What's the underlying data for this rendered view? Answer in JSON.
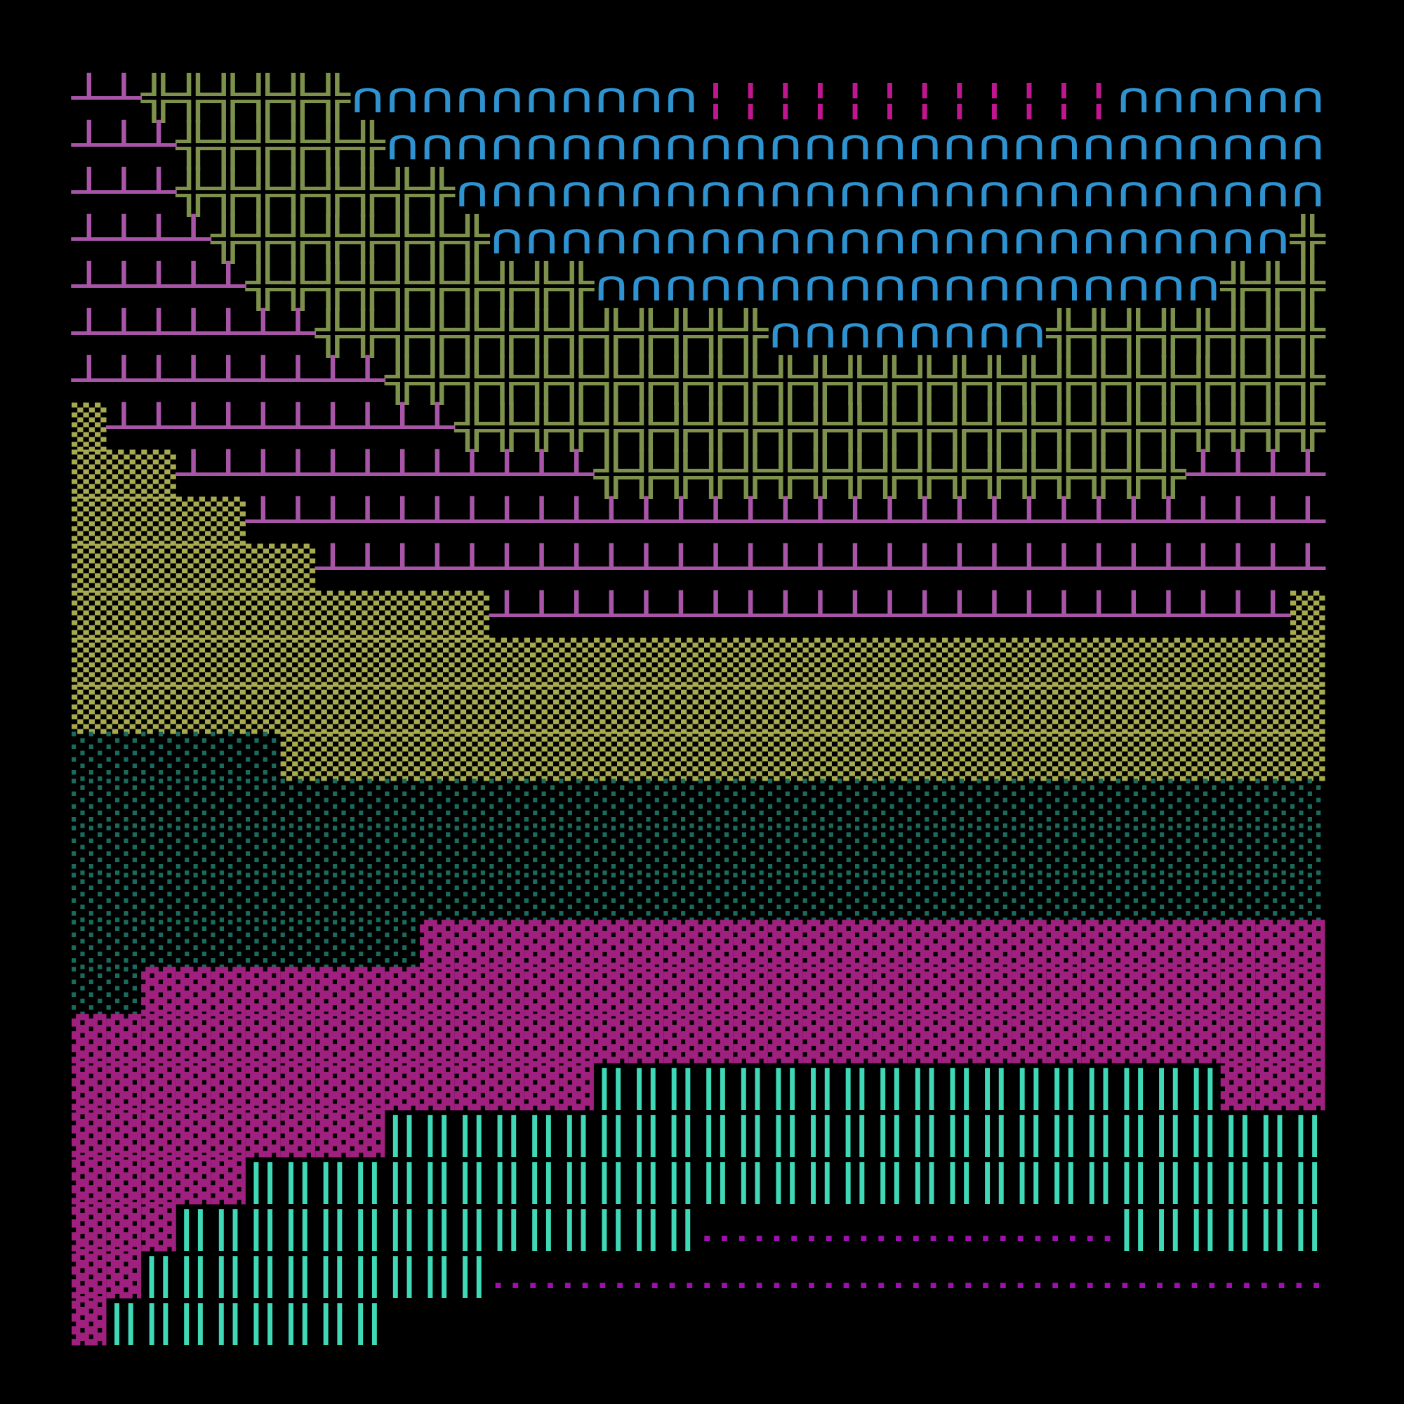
{
  "rows": [
    [
      {
        "text": "┴┴",
        "color": "#a855a8"
      },
      {
        "text": "╬╬╬╬╬╬",
        "color": "#7d914c"
      },
      {
        "text": "∩∩∩∩∩∩∩∩∩∩",
        "color": "#2e93d0"
      },
      {
        "text": "¦¦¦¦¦¦¦¦¦¦¦¦",
        "color": "#c0168f"
      },
      {
        "text": "∩∩∩∩∩∩",
        "color": "#2e93d0"
      }
    ],
    [
      {
        "text": "┴┴┴",
        "color": "#a855a8"
      },
      {
        "text": "╬╬╬╬╬╬",
        "color": "#7d914c"
      },
      {
        "text": "∩∩∩∩∩∩∩∩∩∩∩∩∩∩∩∩∩∩∩∩∩∩∩∩∩∩∩",
        "color": "#2e93d0"
      }
    ],
    [
      {
        "text": "┴┴┴",
        "color": "#a855a8"
      },
      {
        "text": "╬╬╬╬╬╬╬╬",
        "color": "#7d914c"
      },
      {
        "text": "∩∩∩∩∩∩∩∩∩∩∩∩∩∩∩∩∩∩∩∩∩∩∩∩∩",
        "color": "#2e93d0"
      }
    ],
    [
      {
        "text": "┴┴┴┴",
        "color": "#a855a8"
      },
      {
        "text": "╬╬╬╬╬╬╬╬",
        "color": "#7d914c"
      },
      {
        "text": "∩∩∩∩∩∩∩∩∩∩∩∩∩∩∩∩∩∩∩∩∩∩∩",
        "color": "#2e93d0"
      },
      {
        "text": "╬",
        "color": "#7d914c"
      }
    ],
    [
      {
        "text": "┴┴┴┴┴",
        "color": "#a855a8"
      },
      {
        "text": "╬╬╬╬╬╬╬╬╬╬",
        "color": "#7d914c"
      },
      {
        "text": "∩∩∩∩∩∩∩∩∩∩∩∩∩∩∩∩∩∩",
        "color": "#2e93d0"
      },
      {
        "text": "╬╬╬",
        "color": "#7d914c"
      }
    ],
    [
      {
        "text": "┴┴┴┴┴┴┴",
        "color": "#a855a8"
      },
      {
        "text": "╬╬╬╬╬╬╬╬╬╬╬╬╬",
        "color": "#7d914c"
      },
      {
        "text": "∩∩∩∩∩∩∩∩",
        "color": "#2e93d0"
      },
      {
        "text": "╬╬╬╬╬╬╬╬",
        "color": "#7d914c"
      }
    ],
    [
      {
        "text": "┴┴┴┴┴┴┴┴┴",
        "color": "#a855a8"
      },
      {
        "text": "╬╬╬╬╬╬╬╬╬╬╬╬╬╬╬╬╬╬╬╬╬╬╬╬╬╬╬",
        "color": "#7d914c"
      }
    ],
    [
      {
        "text": "▒",
        "color": "#a8aa50"
      },
      {
        "text": "┴┴┴┴┴┴┴┴┴┴",
        "color": "#a855a8"
      },
      {
        "text": "╬╬╬╬╬╬╬╬╬╬╬╬╬╬╬╬╬╬╬╬╬╬╬╬╬",
        "color": "#7d914c"
      }
    ],
    [
      {
        "text": "▒▒▒",
        "color": "#a8aa50"
      },
      {
        "text": "┴┴┴┴┴┴┴┴┴┴┴┴",
        "color": "#a855a8"
      },
      {
        "text": "╬╬╬╬╬╬╬╬╬╬╬╬╬╬╬╬╬",
        "color": "#7d914c"
      },
      {
        "text": "┴┴┴┴",
        "color": "#a855a8"
      }
    ],
    [
      {
        "text": "▒▒▒▒▒",
        "color": "#a8aa50"
      },
      {
        "text": "┴┴┴┴┴┴┴┴┴┴┴┴┴┴┴┴┴┴┴┴┴┴┴┴┴┴┴┴┴┴┴",
        "color": "#a855a8"
      }
    ],
    [
      {
        "text": "▒▒▒▒▒▒▒",
        "color": "#a8aa50"
      },
      {
        "text": "┴┴┴┴┴┴┴┴┴┴┴┴┴┴┴┴┴┴┴┴┴┴┴┴┴┴┴┴┴",
        "color": "#a855a8"
      }
    ],
    [
      {
        "text": "▒▒▒▒▒▒▒▒▒▒▒▒",
        "color": "#a8aa50"
      },
      {
        "text": "┴┴┴┴┴┴┴┴┴┴┴┴┴┴┴┴┴┴┴┴┴┴┴",
        "color": "#a855a8"
      },
      {
        "text": "▒",
        "color": "#a8aa50"
      }
    ],
    [
      {
        "text": "▒▒▒▒▒▒▒▒▒▒▒▒▒▒▒▒▒▒▒▒▒▒▒▒▒▒▒▒▒▒▒▒▒▒▒▒",
        "color": "#a8aa50"
      }
    ],
    [
      {
        "text": "▒▒▒▒▒▒▒▒▒▒▒▒▒▒▒▒▒▒▒▒▒▒▒▒▒▒▒▒▒▒▒▒▒▒▒▒",
        "color": "#a8aa50"
      }
    ],
    [
      {
        "text": "░░░░░░",
        "color": "#1a6b5e"
      },
      {
        "text": "▒▒▒▒▒▒▒▒▒▒▒▒▒▒▒▒▒▒▒▒▒▒▒▒▒▒▒▒▒▒",
        "color": "#a8aa50"
      }
    ],
    [
      {
        "text": "░░░░░░░░░░░░░░░░░░░░░░░░░░░░░░░░░░░░",
        "color": "#1a6b5e"
      }
    ],
    [
      {
        "text": "░░░░░░░░░░░░░░░░░░░░░░░░░░░░░░░░░░░░",
        "color": "#1a6b5e"
      }
    ],
    [
      {
        "text": "░░░░░░░░░░░░░░░░░░░░░░░░░░░░░░░░░░░░",
        "color": "#1a6b5e"
      }
    ],
    [
      {
        "text": "░░░░░░░░░░",
        "color": "#1a6b5e"
      },
      {
        "text": "▓▓▓▓▓▓▓▓▓▓▓▓▓▓▓▓▓▓▓▓▓▓▓▓▓▓",
        "color": "#a0207f"
      }
    ],
    [
      {
        "text": "░░",
        "color": "#1a6b5e"
      },
      {
        "text": "▓▓▓▓▓▓▓▓▓▓▓▓▓▓▓▓▓▓▓▓▓▓▓▓▓▓▓▓▓▓▓▓▓▓",
        "color": "#a0207f"
      }
    ],
    [
      {
        "text": "▓▓▓▓▓▓▓▓▓▓▓▓▓▓▓▓▓▓▓▓▓▓▓▓▓▓▓▓▓▓▓▓▓▓▓▓",
        "color": "#a0207f"
      }
    ],
    [
      {
        "text": "▓▓▓▓▓▓▓▓▓▓▓▓▓▓▓",
        "color": "#a0207f"
      },
      {
        "text": "‖‖‖‖‖‖‖‖‖‖‖‖‖‖‖‖‖‖",
        "color": "#3fd9b8"
      },
      {
        "text": "▓▓▓",
        "color": "#a0207f"
      }
    ],
    [
      {
        "text": "▓▓▓▓▓▓▓▓▓",
        "color": "#a0207f"
      },
      {
        "text": "‖‖‖‖‖‖‖‖‖‖‖‖‖‖‖‖‖‖‖‖‖‖‖‖‖‖‖",
        "color": "#3fd9b8"
      }
    ],
    [
      {
        "text": "▓▓▓▓▓",
        "color": "#a0207f"
      },
      {
        "text": "‖‖‖‖‖‖‖‖‖‖‖‖‖‖‖‖‖‖‖‖‖‖‖‖‖‖‖‖‖‖‖",
        "color": "#3fd9b8"
      }
    ],
    [
      {
        "text": "▓▓▓",
        "color": "#a0207f"
      },
      {
        "text": "‖‖‖‖‖‖‖‖‖‖‖‖‖‖‖",
        "color": "#3fd9b8"
      },
      {
        "text": "‥‥‥‥‥‥‥‥‥‥‥‥",
        "color": "#a010b0"
      },
      {
        "text": "‖‖‖‖‖‖",
        "color": "#3fd9b8"
      }
    ],
    [
      {
        "text": "▓▓",
        "color": "#a0207f"
      },
      {
        "text": "‖‖‖‖‖‖‖‖‖‖",
        "color": "#3fd9b8"
      },
      {
        "text": "‥‥‥‥‥‥‥‥‥‥‥‥‥‥‥‥‥‥‥‥‥‥‥‥",
        "color": "#a010b0"
      }
    ],
    [
      {
        "text": "▓",
        "color": "#a0207f"
      },
      {
        "text": "‖‖‖‖‖‖‖‖",
        "color": "#3fd9b8"
      }
    ]
  ]
}
